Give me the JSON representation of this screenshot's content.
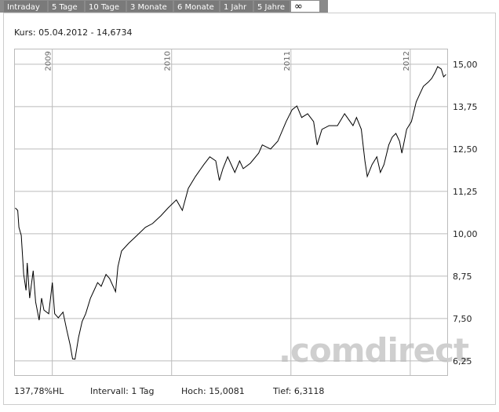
{
  "tabs": [
    "Intraday",
    "5 Tage",
    "10 Tage",
    "3 Monate",
    "6 Monate",
    "1 Jahr",
    "5 Jahre",
    "∞"
  ],
  "header": "Kurs: 05.04.2012 - 14,6734",
  "footer": [
    "137,78%HL",
    "Intervall: 1 Tag",
    "Hoch: 15,0081",
    "Tief: 6,3118"
  ],
  "watermark": ".comdirect",
  "chart_data": {
    "type": "line",
    "color": "#000000",
    "grid": true,
    "xlim": [
      2008.68,
      2012.31
    ],
    "xticks": [
      2009,
      2010,
      2011,
      2012
    ],
    "ylim": [
      5.83,
      15.46
    ],
    "yticks": [
      {
        "value": 6.25,
        "label": "6,25"
      },
      {
        "value": 7.5,
        "label": "7,50"
      },
      {
        "value": 8.75,
        "label": "8,75"
      },
      {
        "value": 10,
        "label": "10,00"
      },
      {
        "value": 11.25,
        "label": "11,25"
      },
      {
        "value": 12.5,
        "label": "12,50"
      },
      {
        "value": 13.75,
        "label": "13,75"
      },
      {
        "value": 15,
        "label": "15,00"
      }
    ],
    "x": [
      2008.69,
      2008.71,
      2008.72,
      2008.74,
      2008.76,
      2008.78,
      2008.79,
      2008.81,
      2008.84,
      2008.86,
      2008.89,
      2008.91,
      2008.93,
      2008.97,
      2009.0,
      2009.02,
      2009.05,
      2009.09,
      2009.12,
      2009.15,
      2009.17,
      2009.19,
      2009.22,
      2009.25,
      2009.28,
      2009.32,
      2009.35,
      2009.38,
      2009.41,
      2009.45,
      2009.48,
      2009.53,
      2009.55,
      2009.58,
      2009.64,
      2009.71,
      2009.78,
      2009.84,
      2009.91,
      2009.97,
      2010.04,
      2010.09,
      2010.14,
      2010.2,
      2010.27,
      2010.32,
      2010.37,
      2010.4,
      2010.43,
      2010.47,
      2010.53,
      2010.57,
      2010.6,
      2010.66,
      2010.73,
      2010.76,
      2010.83,
      2010.89,
      2010.96,
      2011.01,
      2011.05,
      2011.09,
      2011.14,
      2011.19,
      2011.22,
      2011.26,
      2011.32,
      2011.39,
      2011.45,
      2011.52,
      2011.55,
      2011.59,
      2011.62,
      2011.64,
      2011.68,
      2011.72,
      2011.75,
      2011.78,
      2011.82,
      2011.85,
      2011.88,
      2011.91,
      2011.93,
      2011.97,
      2012.01,
      2012.05,
      2012.08,
      2012.11,
      2012.15,
      2012.18,
      2012.21,
      2012.23,
      2012.26,
      2012.28,
      2012.3
    ],
    "values": [
      10.76,
      10.69,
      10.19,
      9.95,
      8.8,
      8.33,
      9.14,
      8.1,
      8.91,
      7.99,
      7.45,
      8.1,
      7.75,
      7.64,
      8.56,
      7.64,
      7.52,
      7.69,
      7.18,
      6.71,
      6.31,
      6.3,
      6.94,
      7.41,
      7.64,
      8.1,
      8.33,
      8.56,
      8.45,
      8.8,
      8.68,
      8.29,
      9.03,
      9.49,
      9.72,
      9.95,
      10.19,
      10.3,
      10.53,
      10.76,
      11.0,
      10.69,
      11.34,
      11.69,
      12.04,
      12.27,
      12.15,
      11.57,
      11.92,
      12.27,
      11.81,
      12.15,
      11.92,
      12.08,
      12.38,
      12.62,
      12.5,
      12.73,
      13.31,
      13.66,
      13.77,
      13.43,
      13.54,
      13.31,
      12.62,
      13.08,
      13.19,
      13.19,
      13.54,
      13.19,
      13.43,
      13.08,
      12.15,
      11.69,
      12.04,
      12.27,
      11.81,
      12.04,
      12.62,
      12.85,
      12.96,
      12.73,
      12.38,
      13.08,
      13.31,
      13.89,
      14.12,
      14.35,
      14.47,
      14.58,
      14.77,
      14.93,
      14.86,
      14.63,
      14.7
    ]
  }
}
